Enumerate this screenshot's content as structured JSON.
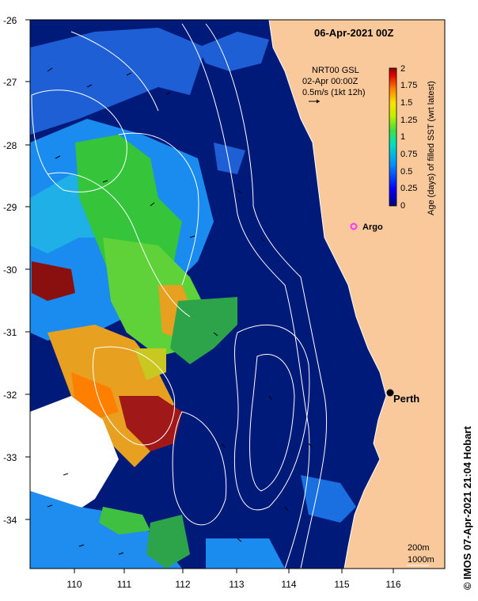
{
  "map": {
    "title": "06-Apr-2021 00Z",
    "lon_labels": [
      "110",
      "111",
      "112",
      "113",
      "114",
      "115",
      "116"
    ],
    "lat_labels": [
      "-26",
      "-27",
      "-28",
      "-29",
      "-30",
      "-31",
      "-32",
      "-33",
      "-34"
    ],
    "current_ref": {
      "source": "NRT00 GSL",
      "time": "02-Apr 00:00Z",
      "speed": "0.5m/s (1kt 12h)"
    },
    "colorbar": {
      "title": "Age (days) of filled SST (wrt latest)",
      "ticks": [
        "2",
        "1.75",
        "1.5",
        "1.25",
        "1",
        "0.75",
        "0.5",
        "0.25",
        "0"
      ]
    },
    "markers": {
      "argo_label": "Argo",
      "city_label": "Perth"
    },
    "legend": {
      "contour_1": "200m",
      "contour_2": "1000m"
    },
    "credit": "© IMOS 07-Apr-2021 21:04 Hobart",
    "colors": {
      "ocean": "#001a7a",
      "land": "#f9c99c",
      "no_data": "#ffffff",
      "argo": "#ff33ff",
      "city": "#000000",
      "contours": "#ffffff",
      "colorbar_top": "#8b0000",
      "colorbar_bottom": "#00007f"
    }
  }
}
